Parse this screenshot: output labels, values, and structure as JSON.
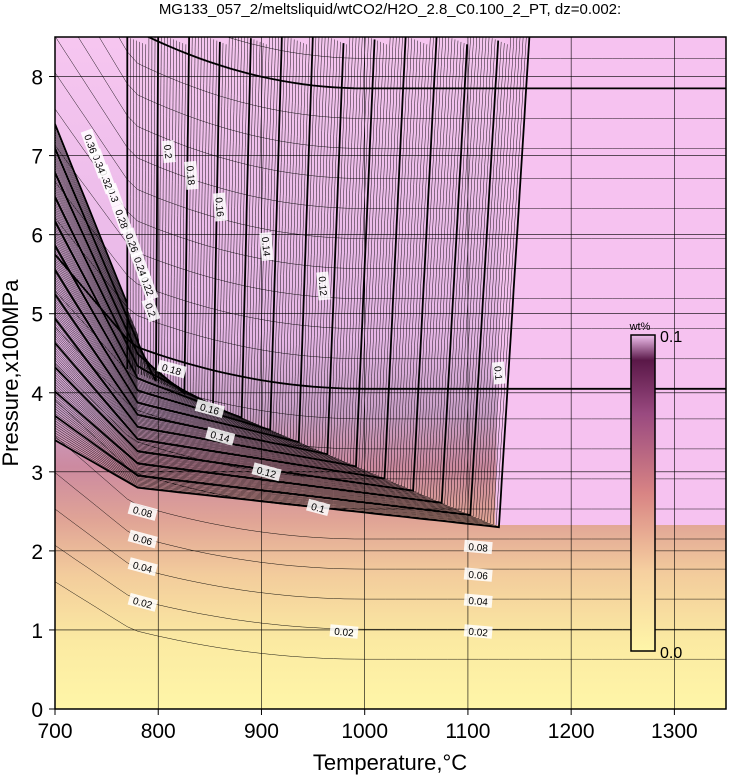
{
  "chart_data": {
    "type": "heatmap",
    "title": "MG133_057_2/meltsliquid/wtCO2/H2O_2.8_C0.100_2_PT, dz=0.002:",
    "xlabel": "Temperature,°C",
    "ylabel": "Pressure,x100MPa",
    "xlim": [
      700,
      1350
    ],
    "ylim": [
      0,
      8.5
    ],
    "xticks": [
      "700",
      "800",
      "900",
      "1000",
      "1100",
      "1200",
      "1300"
    ],
    "yticks": [
      "0",
      "1",
      "2",
      "3",
      "4",
      "5",
      "6",
      "7",
      "8"
    ],
    "grid": true,
    "colorbar": {
      "unit": "wt%",
      "min_label": "0.0",
      "max_label": "0.1",
      "min": 0.0,
      "max": 0.1,
      "colors": [
        "#fff6a8",
        "#f6d0a0",
        "#d88484",
        "#6a1e4a",
        "#f6c0f0"
      ],
      "placement": "right-inside"
    },
    "contour_interval": 0.002,
    "bold_interval": 0.02,
    "labeled_contours": [
      {
        "label": "0.02",
        "x": 980,
        "y": 0.98
      },
      {
        "label": "0.02",
        "x": 1110,
        "y": 0.98
      },
      {
        "label": "0.04",
        "x": 1110,
        "y": 1.37
      },
      {
        "label": "0.06",
        "x": 1110,
        "y": 1.7
      },
      {
        "label": "0.08",
        "x": 1110,
        "y": 2.05
      },
      {
        "label": "0.1",
        "x": 1130,
        "y": 4.25
      },
      {
        "label": "0.12",
        "x": 960,
        "y": 5.35
      },
      {
        "label": "0.14",
        "x": 905,
        "y": 5.85
      },
      {
        "label": "0.16",
        "x": 860,
        "y": 6.35
      },
      {
        "label": "0.18",
        "x": 832,
        "y": 6.75
      },
      {
        "label": "0.2",
        "x": 810,
        "y": 7.05
      }
    ],
    "lower_labels": [
      {
        "label": "0.02",
        "x": 785,
        "y": 1.35
      },
      {
        "label": "0.04",
        "x": 785,
        "y": 1.8
      },
      {
        "label": "0.06",
        "x": 785,
        "y": 2.15
      },
      {
        "label": "0.08",
        "x": 785,
        "y": 2.5
      },
      {
        "label": "0.1",
        "x": 955,
        "y": 2.55
      },
      {
        "label": "0.12",
        "x": 905,
        "y": 3.0
      },
      {
        "label": "0.14",
        "x": 860,
        "y": 3.45
      },
      {
        "label": "0.16",
        "x": 850,
        "y": 3.8
      },
      {
        "label": "0.18",
        "x": 813,
        "y": 4.3
      },
      {
        "label": "0.2",
        "x": 793,
        "y": 5.05
      },
      {
        "label": "0.22",
        "x": 790,
        "y": 5.35
      },
      {
        "label": "0.24",
        "x": 783,
        "y": 5.6
      },
      {
        "label": "0.26",
        "x": 775,
        "y": 5.9
      },
      {
        "label": "0.28",
        "x": 765,
        "y": 6.2
      },
      {
        "label": "0.3",
        "x": 757,
        "y": 6.5
      },
      {
        "label": "0.32",
        "x": 750,
        "y": 6.7
      },
      {
        "label": "0.34",
        "x": 743,
        "y": 6.9
      },
      {
        "label": "0.36",
        "x": 735,
        "y": 7.15
      }
    ]
  }
}
